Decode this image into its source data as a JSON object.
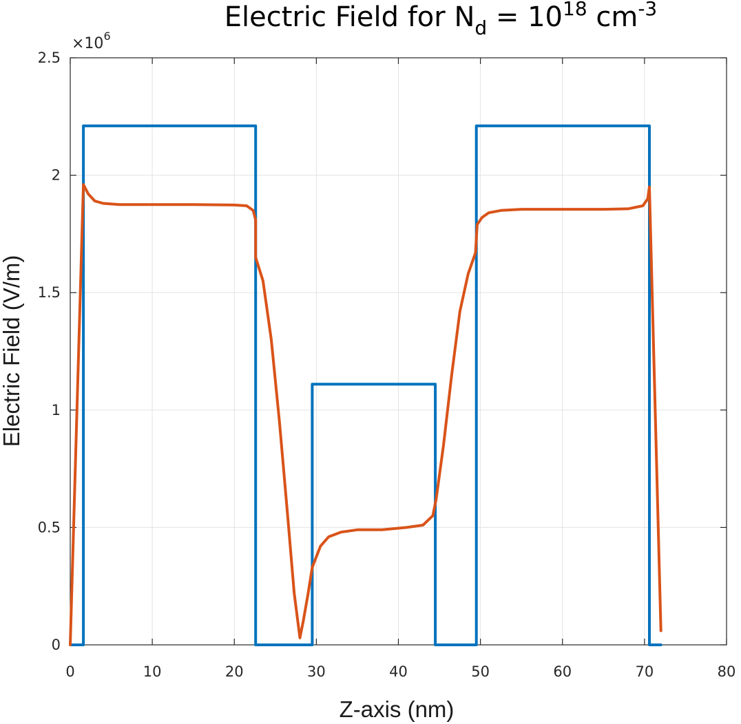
{
  "chart_data": {
    "type": "line",
    "title": {
      "prefix": "Electric Field for N",
      "sub": "d",
      "mid": " = 10",
      "sup1": "18",
      "unit": " cm",
      "sup2": "-3"
    },
    "xlabel": "Z-axis (nm)",
    "ylabel": "Electric Field (V/m)",
    "y_multiplier": {
      "base": "×10",
      "exponent": "6"
    },
    "xlim": [
      0,
      80
    ],
    "ylim": [
      0,
      2.5
    ],
    "x_ticks": [
      0,
      10,
      20,
      30,
      40,
      50,
      60,
      70,
      80
    ],
    "x_tick_labels": [
      "0",
      "10",
      "20",
      "30",
      "40",
      "50",
      "60",
      "70",
      "80"
    ],
    "y_ticks": [
      0,
      0.5,
      1,
      1.5,
      2,
      2.5
    ],
    "y_tick_labels": [
      "0",
      "0.5",
      "1",
      "1.5",
      "2",
      "2.5"
    ],
    "grid": true,
    "series": [
      {
        "color": "#0072BD",
        "x": [
          0,
          1.6,
          1.6,
          22.6,
          22.6,
          29.5,
          29.5,
          44.5,
          44.5,
          49.5,
          49.5,
          70.6,
          70.6,
          72
        ],
        "y": [
          0,
          0,
          2.21,
          2.21,
          0,
          0,
          1.11,
          1.11,
          0,
          0,
          2.21,
          2.21,
          0,
          0
        ]
      },
      {
        "color": "#D95319",
        "x": [
          0,
          1.6,
          2.2,
          3,
          4,
          6,
          10,
          15,
          20,
          21.5,
          22.3,
          22.6,
          22.6,
          23.5,
          24.5,
          25.5,
          26.5,
          27.3,
          28.0,
          28.4,
          29.0,
          29.5,
          30.5,
          31.5,
          33,
          35,
          38,
          41,
          43,
          44.2,
          44.6,
          45.5,
          46.5,
          47.5,
          48.5,
          49.4,
          49.6,
          50.2,
          51,
          52.5,
          55,
          60,
          65,
          68,
          69.8,
          70.4,
          70.6,
          71.3,
          72
        ],
        "y": [
          0,
          1.96,
          1.92,
          1.89,
          1.88,
          1.875,
          1.875,
          1.875,
          1.873,
          1.87,
          1.85,
          1.81,
          1.65,
          1.55,
          1.3,
          0.95,
          0.55,
          0.22,
          0.03,
          0.1,
          0.22,
          0.33,
          0.42,
          0.46,
          0.48,
          0.49,
          0.49,
          0.5,
          0.51,
          0.55,
          0.62,
          0.85,
          1.15,
          1.42,
          1.58,
          1.67,
          1.79,
          1.82,
          1.84,
          1.85,
          1.855,
          1.855,
          1.855,
          1.857,
          1.87,
          1.9,
          1.95,
          1.0,
          0.06
        ]
      }
    ]
  }
}
